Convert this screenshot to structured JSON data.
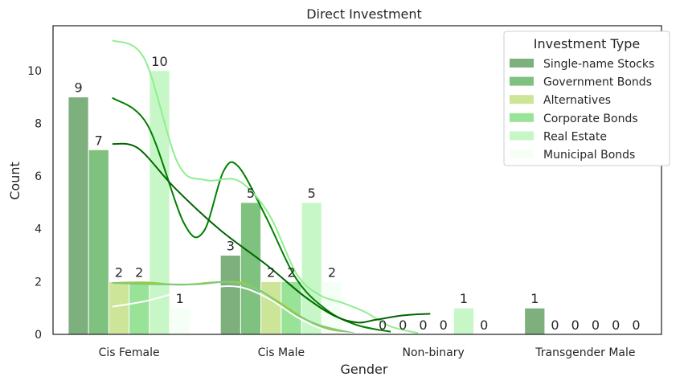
{
  "chart_data": {
    "type": "bar",
    "title": "Direct Investment",
    "xlabel": "Gender",
    "ylabel": "Count",
    "ylim": [
      0,
      11.7
    ],
    "yticks": [
      0,
      2,
      4,
      6,
      8,
      10
    ],
    "categories": [
      "Cis Female",
      "Cis Male",
      "Non-binary",
      "Transgender Male"
    ],
    "grid": false,
    "legend": {
      "title": "Investment Type",
      "placement": "top-right"
    },
    "series": [
      {
        "name": "Single-name Stocks",
        "color": "#7db07d",
        "values": [
          9,
          3,
          0,
          1
        ]
      },
      {
        "name": "Government Bonds",
        "color": "#7fc17f",
        "values": [
          7,
          5,
          0,
          0
        ]
      },
      {
        "name": "Alternatives",
        "color": "#cde599",
        "values": [
          2,
          2,
          0,
          0
        ]
      },
      {
        "name": "Corporate Bonds",
        "color": "#98e398",
        "values": [
          2,
          2,
          0,
          0
        ]
      },
      {
        "name": "Real Estate",
        "color": "#c7f7c7",
        "values": [
          10,
          5,
          1,
          0
        ]
      },
      {
        "name": "Municipal Bonds",
        "color": "#f5fff5",
        "values": [
          1,
          2,
          0,
          0
        ]
      }
    ],
    "kde_lines": [
      {
        "color": "#008000",
        "points": [
          [
            -0.11,
            8.97
          ],
          [
            0.12,
            7.95
          ],
          [
            0.36,
            4.22
          ],
          [
            0.49,
            3.9
          ],
          [
            0.62,
            6.18
          ],
          [
            0.72,
            6.35
          ],
          [
            0.9,
            4.45
          ],
          [
            1.1,
            2.1
          ],
          [
            1.3,
            0.92
          ],
          [
            1.5,
            0.35
          ],
          [
            1.72,
            0.1
          ]
        ]
      },
      {
        "color": "#90ee90",
        "points": [
          [
            -0.11,
            11.15
          ],
          [
            0.1,
            10.45
          ],
          [
            0.32,
            6.5
          ],
          [
            0.5,
            5.85
          ],
          [
            0.72,
            5.82
          ],
          [
            0.92,
            4.55
          ],
          [
            1.1,
            2.3
          ],
          [
            1.25,
            1.5
          ],
          [
            1.4,
            1.2
          ],
          [
            1.55,
            0.85
          ],
          [
            1.72,
            0.3
          ],
          [
            1.9,
            0.05
          ]
        ]
      },
      {
        "color": "#006400",
        "points": [
          [
            -0.11,
            7.22
          ],
          [
            0.06,
            7.05
          ],
          [
            0.3,
            5.55
          ],
          [
            0.6,
            3.95
          ],
          [
            0.9,
            2.65
          ],
          [
            1.15,
            1.45
          ],
          [
            1.35,
            0.7
          ],
          [
            1.5,
            0.45
          ],
          [
            1.62,
            0.55
          ],
          [
            1.8,
            0.72
          ],
          [
            1.98,
            0.78
          ]
        ]
      },
      {
        "color": "#9acd32",
        "points": [
          [
            -0.11,
            1.95
          ],
          [
            0.1,
            1.97
          ],
          [
            0.35,
            1.88
          ],
          [
            0.58,
            1.98
          ],
          [
            0.76,
            1.93
          ],
          [
            0.95,
            1.35
          ],
          [
            1.15,
            0.6
          ],
          [
            1.3,
            0.22
          ],
          [
            1.48,
            0.03
          ]
        ]
      },
      {
        "color": "#80c880",
        "points": [
          [
            -0.11,
            1.95
          ],
          [
            0.15,
            1.9
          ],
          [
            0.45,
            1.9
          ],
          [
            0.65,
            1.98
          ],
          [
            0.85,
            1.7
          ],
          [
            1.05,
            0.9
          ],
          [
            1.25,
            0.35
          ],
          [
            1.48,
            0.04
          ]
        ]
      },
      {
        "color": "#ffffff",
        "points": [
          [
            -0.11,
            1.05
          ],
          [
            0.1,
            1.25
          ],
          [
            0.3,
            1.55
          ],
          [
            0.5,
            1.75
          ],
          [
            0.72,
            1.8
          ],
          [
            0.92,
            1.35
          ],
          [
            1.12,
            0.6
          ],
          [
            1.3,
            0.15
          ],
          [
            1.48,
            0.02
          ]
        ]
      }
    ]
  }
}
